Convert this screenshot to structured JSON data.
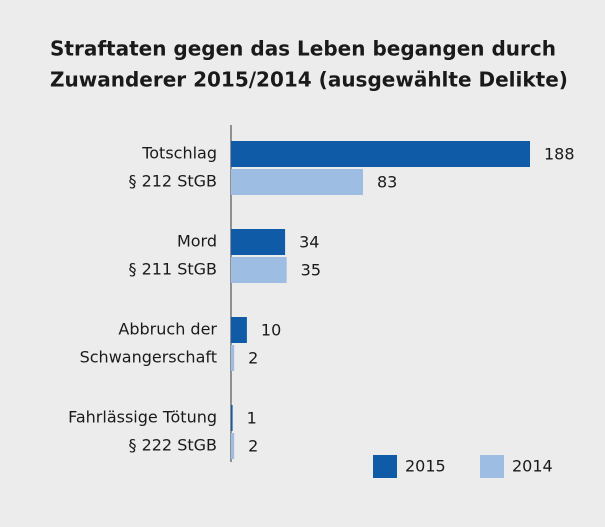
{
  "chart_data": {
    "type": "bar",
    "orientation": "horizontal",
    "title": [
      "Straftaten gegen das Leben begangen durch",
      "Zuwanderer 2015/2014 (ausgewählte Delikte)"
    ],
    "categories": [
      [
        "Totschlag",
        "§ 212 StGB"
      ],
      [
        "Mord",
        "§ 211 StGB"
      ],
      [
        "Abbruch der",
        "Schwangerschaft"
      ],
      [
        "Fahrlässige Tötung",
        "§ 222 StGB"
      ]
    ],
    "series": [
      {
        "name": "2015",
        "color": "#0f5ba8",
        "values": [
          188,
          34,
          10,
          1
        ]
      },
      {
        "name": "2014",
        "color": "#9dbde3",
        "values": [
          83,
          35,
          2,
          2
        ]
      }
    ],
    "legend": "bottom-right"
  }
}
